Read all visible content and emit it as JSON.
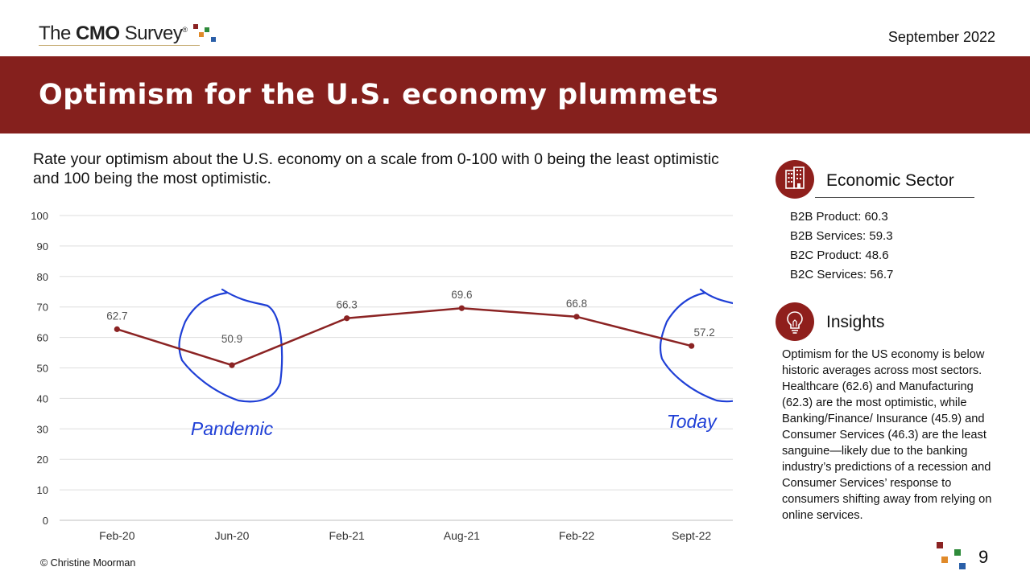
{
  "header": {
    "logo_text_pre": "The ",
    "logo_text_bold": "CMO",
    "logo_text_post": " Survey",
    "logo_mark": "®",
    "date": "September 2022"
  },
  "banner": {
    "title": "Optimism for the U.S. economy plummets"
  },
  "question": "Rate your optimism about the U.S. economy on a scale from 0-100 with 0 being the least optimistic and 100 being the most optimistic.",
  "chart_data": {
    "type": "line",
    "categories": [
      "Feb-20",
      "Jun-20",
      "Feb-21",
      "Aug-21",
      "Feb-22",
      "Sept-22"
    ],
    "series": [
      {
        "values": [
          62.7,
          50.9,
          66.3,
          69.6,
          66.8,
          57.2
        ],
        "color": "#8b2323"
      }
    ],
    "data_labels": [
      "62.7",
      "50.9",
      "66.3",
      "69.6",
      "66.8",
      "57.2"
    ],
    "yticks": [
      0,
      10,
      20,
      30,
      40,
      50,
      60,
      70,
      80,
      90,
      100
    ],
    "ylim": [
      0,
      100
    ],
    "grid": true,
    "annotations": [
      {
        "text": "Pandemic",
        "category": "Jun-20",
        "color": "#1f3fd6"
      },
      {
        "text": "Today",
        "category": "Sept-22",
        "color": "#1f3fd6"
      }
    ]
  },
  "sidebar": {
    "sector": {
      "title": "Economic Sector",
      "icon": "building-icon",
      "items": [
        "B2B Product: 60.3",
        "B2B Services: 59.3",
        "B2C Product: 48.6",
        "B2C Services: 56.7"
      ]
    },
    "insights": {
      "title": "Insights",
      "icon": "lightbulb-icon",
      "text": "Optimism for the US economy is below historic averages across most sectors. Healthcare (62.6) and Manufacturing (62.3) are the most optimistic, while Banking/Finance/ Insurance (45.9) and Consumer Services (46.3) are the least sanguine—likely due to the banking industry’s predictions of a recession and Consumer Services’ response to consumers shifting away from relying on online services."
    }
  },
  "footer": {
    "copyright": "© Christine Moorman",
    "page_number": "9"
  },
  "colors": {
    "banner": "#85201d",
    "accent": "#8f1f1c",
    "annotation": "#1f3fd6"
  }
}
